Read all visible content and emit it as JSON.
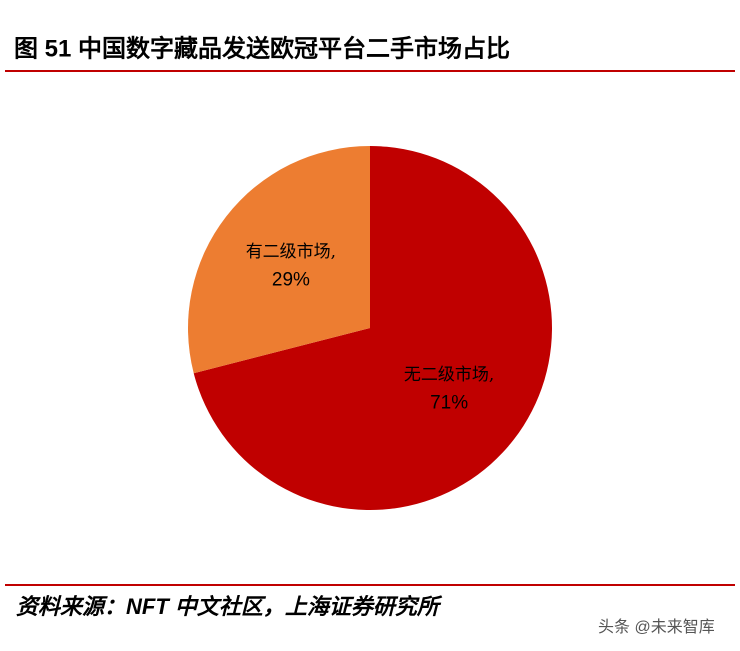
{
  "chart_data": {
    "type": "pie",
    "title": "图 51 中国数字藏品发送欧冠平台二手市场占比",
    "categories": [
      "无二级市场,",
      "有二级市场,"
    ],
    "values": [
      71,
      29
    ],
    "value_labels": [
      "71%",
      "29%"
    ],
    "colors": [
      "#c00000",
      "#ed7d31"
    ],
    "source": "资料来源：NFT 中文社区，上海证券研究所",
    "watermark": "头条 @未来智库"
  }
}
